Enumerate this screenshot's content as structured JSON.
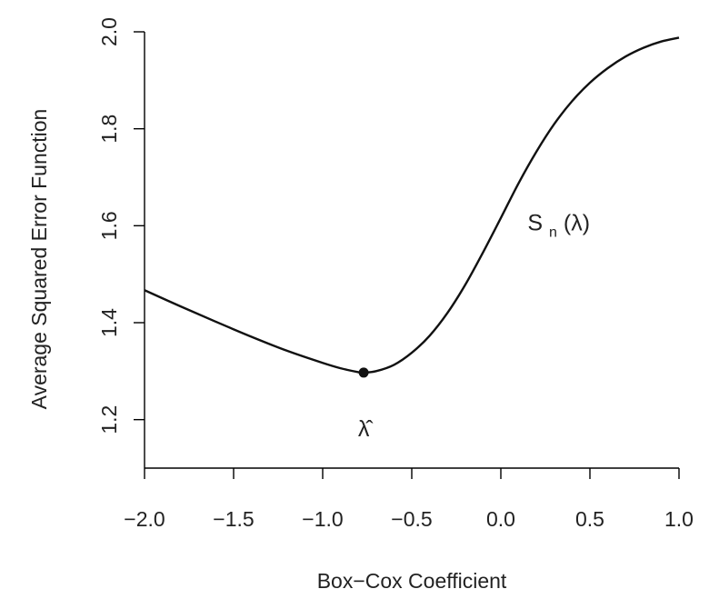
{
  "chart_data": {
    "type": "line",
    "title": "",
    "xlabel": "Box−Cox Coefficient",
    "ylabel": "Average Squared Error Function",
    "xlim": [
      -2.0,
      1.0
    ],
    "ylim": [
      1.1,
      2.0
    ],
    "grid": false,
    "x_ticks": [
      -2.0,
      -1.5,
      -1.0,
      -0.5,
      0.0,
      0.5,
      1.0
    ],
    "x_tick_labels": [
      "−2.0",
      "−1.5",
      "−1.0",
      "−0.5",
      "0.0",
      "0.5",
      "1.0"
    ],
    "y_ticks": [
      1.2,
      1.4,
      1.6,
      1.8,
      2.0
    ],
    "y_tick_labels": [
      "1.2",
      "1.4",
      "1.6",
      "1.8",
      "2.0"
    ],
    "series": [
      {
        "x": [
          -2.0,
          -1.8,
          -1.6,
          -1.4,
          -1.2,
          -1.0,
          -0.9,
          -0.8,
          -0.77,
          -0.7,
          -0.6,
          -0.5,
          -0.4,
          -0.3,
          -0.2,
          -0.1,
          0.0,
          0.1,
          0.2,
          0.3,
          0.4,
          0.5,
          0.6,
          0.7,
          0.8,
          0.9,
          1.0
        ],
        "y": [
          1.467,
          1.434,
          1.402,
          1.371,
          1.342,
          1.317,
          1.306,
          1.298,
          1.297,
          1.3,
          1.313,
          1.338,
          1.373,
          1.42,
          1.478,
          1.545,
          1.616,
          1.688,
          1.753,
          1.81,
          1.857,
          1.895,
          1.925,
          1.949,
          1.967,
          1.98,
          1.988
        ]
      }
    ],
    "minimum_point": {
      "x": -0.77,
      "y": 1.297
    },
    "annotations": {
      "curve_label_base": "S",
      "curve_label_sub": "n",
      "curve_label_arg": "(λ)",
      "min_label": "λ̂"
    }
  }
}
